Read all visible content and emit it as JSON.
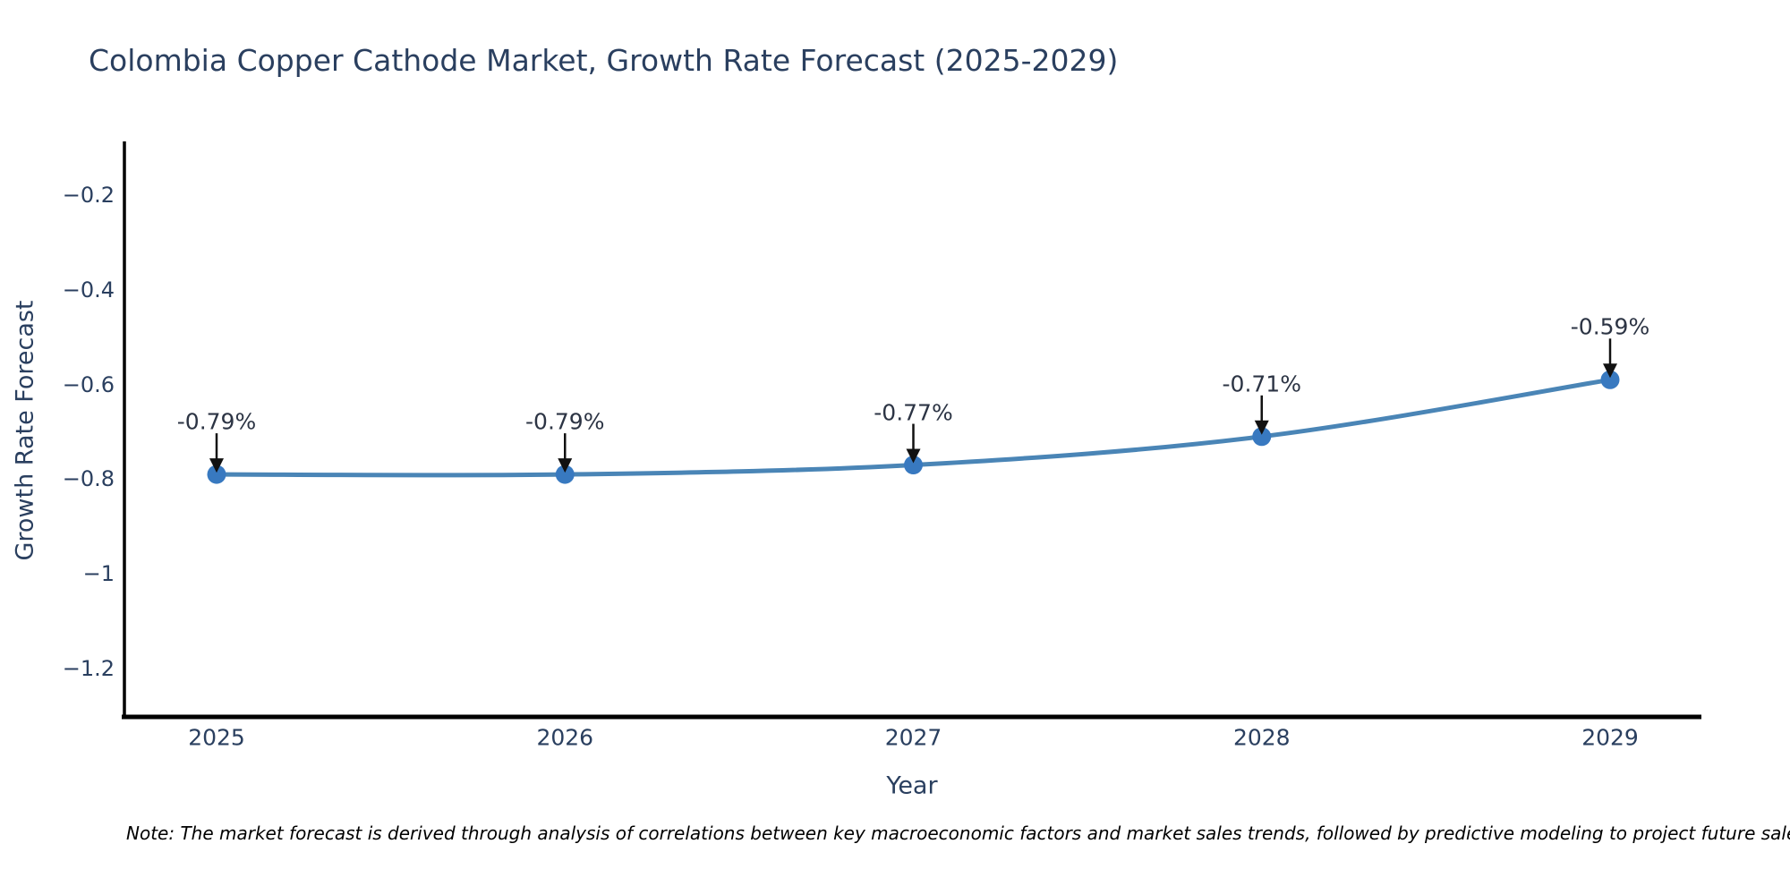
{
  "title": "Colombia Copper Cathode Market, Growth Rate Forecast (2025-2029)",
  "x_axis": {
    "label": "Year",
    "ticks": [
      "2025",
      "2026",
      "2027",
      "2028",
      "2029"
    ]
  },
  "y_axis": {
    "label": "Growth Rate Forecast",
    "ticks": [
      "−0.2",
      "−0.4",
      "−0.6",
      "−0.8",
      "−1",
      "−1.2"
    ],
    "tick_values": [
      -0.2,
      -0.4,
      -0.6,
      -0.8,
      -1,
      -1.2
    ]
  },
  "note": "Note: The market forecast is derived through analysis of correlations between key macroeconomic factors and market sales trends, followed by predictive modeling to project future sales",
  "chart_data": {
    "type": "line",
    "x": [
      2025,
      2026,
      2027,
      2028,
      2029
    ],
    "series": [
      {
        "name": "Growth Rate Forecast",
        "values": [
          -0.79,
          -0.79,
          -0.77,
          -0.71,
          -0.59
        ]
      }
    ],
    "point_labels": [
      "-0.79%",
      "-0.79%",
      "-0.77%",
      "-0.71%",
      "-0.59%"
    ],
    "title": "Colombia Copper Cathode Market, Growth Rate Forecast (2025-2029)",
    "xlabel": "Year",
    "ylabel": "Growth Rate Forecast",
    "ylim": [
      -1.3,
      -0.09
    ],
    "yticks": [
      -0.2,
      -0.4,
      -0.6,
      -0.8,
      -1,
      -1.2
    ],
    "grid": false,
    "legend": false,
    "line_shape": "spline"
  },
  "colors": {
    "line": "#4a85b6",
    "marker": "#3879c0",
    "axis": "#000000",
    "text": "#2a3f5f",
    "annotation_text": "#2c3444",
    "annotation_arrow": "#111111",
    "background": "#ffffff"
  }
}
